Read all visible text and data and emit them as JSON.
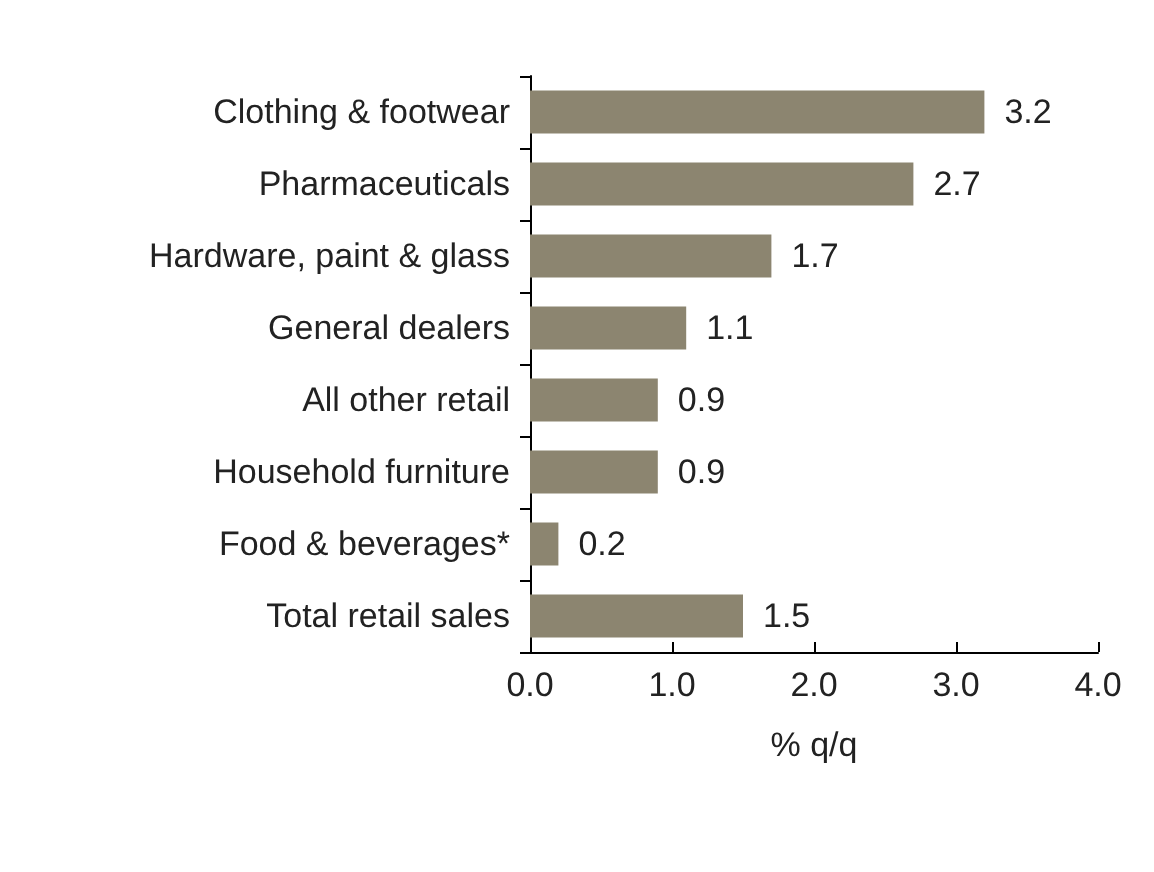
{
  "chart_data": {
    "type": "bar",
    "orientation": "horizontal",
    "xlabel": "% q/q",
    "categories": [
      "Clothing & footwear",
      "Pharmaceuticals",
      "Hardware, paint & glass",
      "General dealers",
      "All other retail",
      "Household furniture",
      "Food & beverages*",
      "Total retail sales"
    ],
    "values": [
      3.2,
      2.7,
      1.7,
      1.1,
      0.9,
      0.9,
      0.2,
      1.5
    ],
    "color": "#8c8570",
    "xlim": [
      0,
      4
    ],
    "xticks": [
      {
        "value": 0,
        "label": "0.0"
      },
      {
        "value": 1,
        "label": "1.0"
      },
      {
        "value": 2,
        "label": "2.0"
      },
      {
        "value": 3,
        "label": "3.0"
      },
      {
        "value": 4,
        "label": "4.0"
      }
    ],
    "data_labels": true,
    "grid": false
  }
}
